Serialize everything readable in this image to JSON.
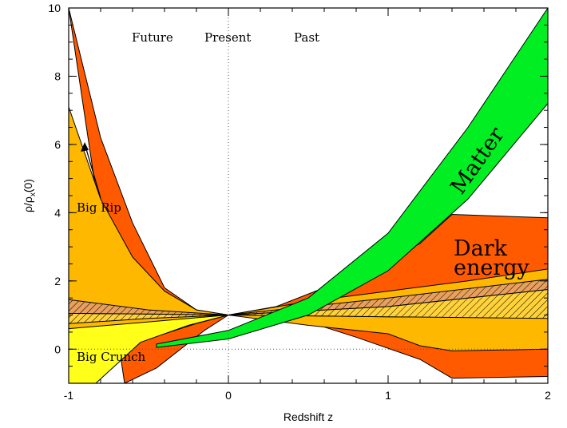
{
  "chart_data": {
    "type": "area",
    "xlabel": "Redshift z",
    "ylabel_main": "ρ/ρ",
    "ylabel_sub": "x",
    "ylabel_tail": "(0)",
    "xlim": [
      -1,
      2
    ],
    "ylim": [
      -1,
      10
    ],
    "x_ticks": [
      -1,
      0,
      1,
      2
    ],
    "x_tick_labels": [
      "-1",
      "0",
      "1",
      "2"
    ],
    "y_ticks": [
      0,
      2,
      4,
      6,
      8,
      10
    ],
    "y_tick_labels": [
      "0",
      "2",
      "4",
      "6",
      "8",
      "10"
    ],
    "grid": false,
    "colors": {
      "matter": "#00ee22",
      "dark_energy_outer": "#ff5a00",
      "dark_energy_middle": "#ffb800",
      "dark_energy_inner": "#ffff1a",
      "hatch_band": "#ffd23a",
      "hatch_band_upper": "#e8a05c"
    },
    "annotations": {
      "future": "Future",
      "present": "Present",
      "past": "Past",
      "big_rip": "Big Rip",
      "big_crunch": "Big Crunch",
      "matter": "Matter",
      "dark": "Dark",
      "energy": "energy"
    },
    "series": [
      {
        "name": "Matter",
        "color": "#00ee22",
        "lower": [
          [
            -0.45,
            0.05
          ],
          [
            0,
            0.3
          ],
          [
            0.5,
            1.0
          ],
          [
            1,
            2.3
          ],
          [
            1.5,
            4.4
          ],
          [
            2,
            7.2
          ]
        ],
        "upper": [
          [
            -0.45,
            0.15
          ],
          [
            0,
            0.55
          ],
          [
            0.5,
            1.5
          ],
          [
            1,
            3.4
          ],
          [
            1.5,
            6.5
          ],
          [
            2,
            10
          ]
        ]
      },
      {
        "color": "#ff5a00",
        "upper": [
          [
            -1,
            10
          ],
          [
            -0.8,
            6.2
          ],
          [
            -0.6,
            3.7
          ],
          [
            -0.4,
            1.8
          ],
          [
            -0.2,
            1.15
          ],
          [
            0,
            1
          ],
          [
            0.3,
            1.25
          ],
          [
            0.6,
            1.8
          ],
          [
            0.9,
            2.3
          ],
          [
            1.2,
            3.1
          ],
          [
            1.4,
            3.95
          ],
          [
            2,
            3.85
          ]
        ],
        "lower": [
          [
            -0.65,
            -1
          ],
          [
            -0.45,
            -0.55
          ],
          [
            -0.3,
            0.0
          ],
          [
            -0.15,
            0.55
          ],
          [
            0,
            1
          ],
          [
            0.5,
            0.8
          ],
          [
            0.8,
            0.35
          ],
          [
            1.2,
            -0.3
          ],
          [
            1.4,
            -0.85
          ],
          [
            2,
            -0.8
          ]
        ]
      },
      {
        "color": "#ffb800",
        "upper": [
          [
            -1,
            7.1
          ],
          [
            -0.8,
            4.4
          ],
          [
            -0.6,
            2.7
          ],
          [
            -0.4,
            1.7
          ],
          [
            -0.2,
            1.15
          ],
          [
            0,
            1
          ],
          [
            0.5,
            1.4
          ],
          [
            1,
            1.7
          ],
          [
            1.5,
            2.0
          ],
          [
            2,
            2.35
          ]
        ],
        "lower": [
          [
            -1,
            0.1
          ],
          [
            -0.7,
            0.15
          ],
          [
            -0.4,
            0.45
          ],
          [
            -0.2,
            0.75
          ],
          [
            0,
            1
          ],
          [
            0.5,
            0.7
          ],
          [
            1,
            0.45
          ],
          [
            1.2,
            0.1
          ],
          [
            1.4,
            -0.05
          ],
          [
            2,
            0.0
          ]
        ]
      },
      {
        "color": "#ffff1a",
        "upper": [
          [
            -1,
            0.6
          ],
          [
            -0.5,
            0.8
          ],
          [
            0,
            1
          ],
          [
            1,
            1.05
          ],
          [
            2,
            1.05
          ]
        ],
        "lower": [
          [
            -1,
            -1
          ],
          [
            -0.83,
            -1
          ],
          [
            -0.55,
            0.2
          ],
          [
            -0.25,
            0.7
          ],
          [
            0,
            1
          ],
          [
            1,
            0.95
          ],
          [
            2,
            0.95
          ]
        ]
      }
    ]
  }
}
